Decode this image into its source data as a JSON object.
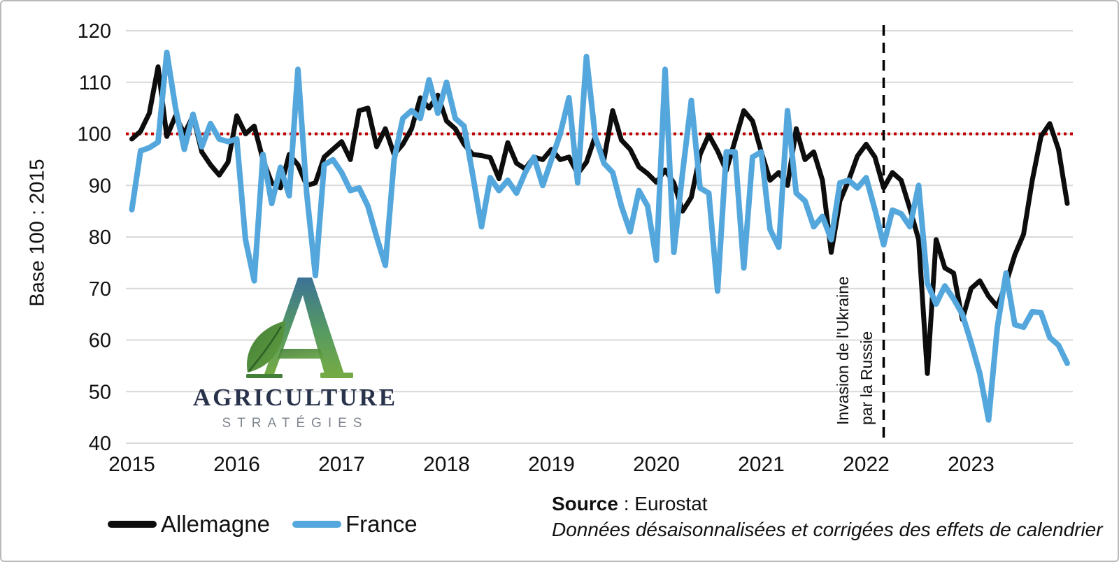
{
  "chart_data": {
    "type": "line",
    "title": "",
    "ylabel": "Base 100 : 2015",
    "ylim": [
      40,
      120
    ],
    "yticks": [
      120,
      110,
      100,
      90,
      80,
      70,
      60,
      50,
      40
    ],
    "xtick_labels": [
      "2015",
      "2016",
      "2017",
      "2018",
      "2019",
      "2020",
      "2021",
      "2022",
      "2023"
    ],
    "x_start": "2015-01",
    "x_end": "2023-12",
    "grid": "horizontal",
    "legend_position": "bottom-left",
    "baseline": {
      "value": 100,
      "color": "#c00000",
      "style": "dotted"
    },
    "event_line": {
      "x_year": 2022,
      "x_month": 3,
      "style": "dashed",
      "color": "#000000",
      "label_line1": "Invasion de l'Ukraine",
      "label_line2": "par la Russie"
    },
    "series": [
      {
        "name": "Allemagne",
        "color": "#0d0d0d",
        "values": [
          99,
          100.5,
          104,
          113,
          99.5,
          103.5,
          100,
          103.5,
          96.5,
          94,
          92,
          94.5,
          103.5,
          100,
          101.5,
          95,
          90.5,
          89.5,
          96,
          94,
          90,
          90.5,
          95.5,
          97,
          98.5,
          95,
          104.5,
          105,
          97.5,
          101,
          96,
          98,
          101,
          107,
          105,
          107.5,
          102.5,
          101,
          98,
          96,
          95.8,
          95.4,
          91.3,
          98.3,
          94.3,
          93.2,
          95.5,
          95,
          97,
          95,
          95.5,
          92.3,
          94.5,
          99.5,
          95,
          104.5,
          98.8,
          97,
          93.6,
          92.3,
          90.6,
          93,
          90.5,
          85,
          87.7,
          96,
          99.8,
          96.7,
          92.9,
          98.7,
          104.5,
          102.5,
          96.5,
          91,
          92.5,
          90,
          101,
          95,
          96.5,
          91,
          77,
          87,
          91,
          95.7,
          98,
          95.5,
          89.5,
          92.5,
          91,
          85.5,
          79.5,
          53.5,
          79.5,
          74,
          73,
          64,
          70,
          71.5,
          68.5,
          66.5,
          71,
          76.5,
          80.5,
          91,
          99.5,
          102,
          97,
          86.5
        ]
      },
      {
        "name": "France",
        "color": "#54a7dc",
        "values": [
          85.3,
          96.7,
          97.3,
          98.4,
          115.8,
          105,
          97,
          103.8,
          97.5,
          102,
          99,
          98.5,
          99,
          79.5,
          71.5,
          96,
          86.5,
          93.5,
          88,
          112.5,
          88.5,
          72.5,
          94,
          95,
          92.5,
          89,
          89.5,
          86,
          80,
          74.5,
          95,
          103,
          104.5,
          103,
          110.5,
          104,
          110,
          103,
          101.5,
          92,
          82,
          91.5,
          89,
          91,
          88.5,
          92.5,
          95.5,
          90,
          95,
          100,
          107,
          90.5,
          115,
          99.5,
          94.3,
          92.5,
          86,
          81,
          89,
          86,
          75.5,
          112.5,
          77,
          92.5,
          106.5,
          89.5,
          88.5,
          69.5,
          96.5,
          96.5,
          74,
          95.5,
          96.5,
          81.5,
          78,
          104.5,
          88.5,
          87,
          82,
          84,
          79.5,
          90.5,
          91,
          89.5,
          91.5,
          85.3,
          78.5,
          85.2,
          84.5,
          82,
          90,
          71,
          67,
          70.5,
          68,
          65,
          59.5,
          53.5,
          44.5,
          62.5,
          73,
          63,
          62.5,
          65.5,
          65.3,
          60.5,
          59,
          55.5
        ]
      }
    ]
  },
  "legend": {
    "items": [
      {
        "label": "Allemagne"
      },
      {
        "label": "France"
      }
    ]
  },
  "source": {
    "label": "Source",
    "separator": " : ",
    "name": "Eurostat",
    "note": "Données désaisonnalisées et corrigées des effets de calendrier"
  },
  "logo": {
    "monogram": "A",
    "title": "AGRICULTURE",
    "subtitle": "STRATÉGIES",
    "colors": {
      "top": "#3c7296",
      "bottom": "#74aa45",
      "leaf": "#4e8a3c",
      "title": "#28324a",
      "subtitle": "#80868f"
    }
  }
}
